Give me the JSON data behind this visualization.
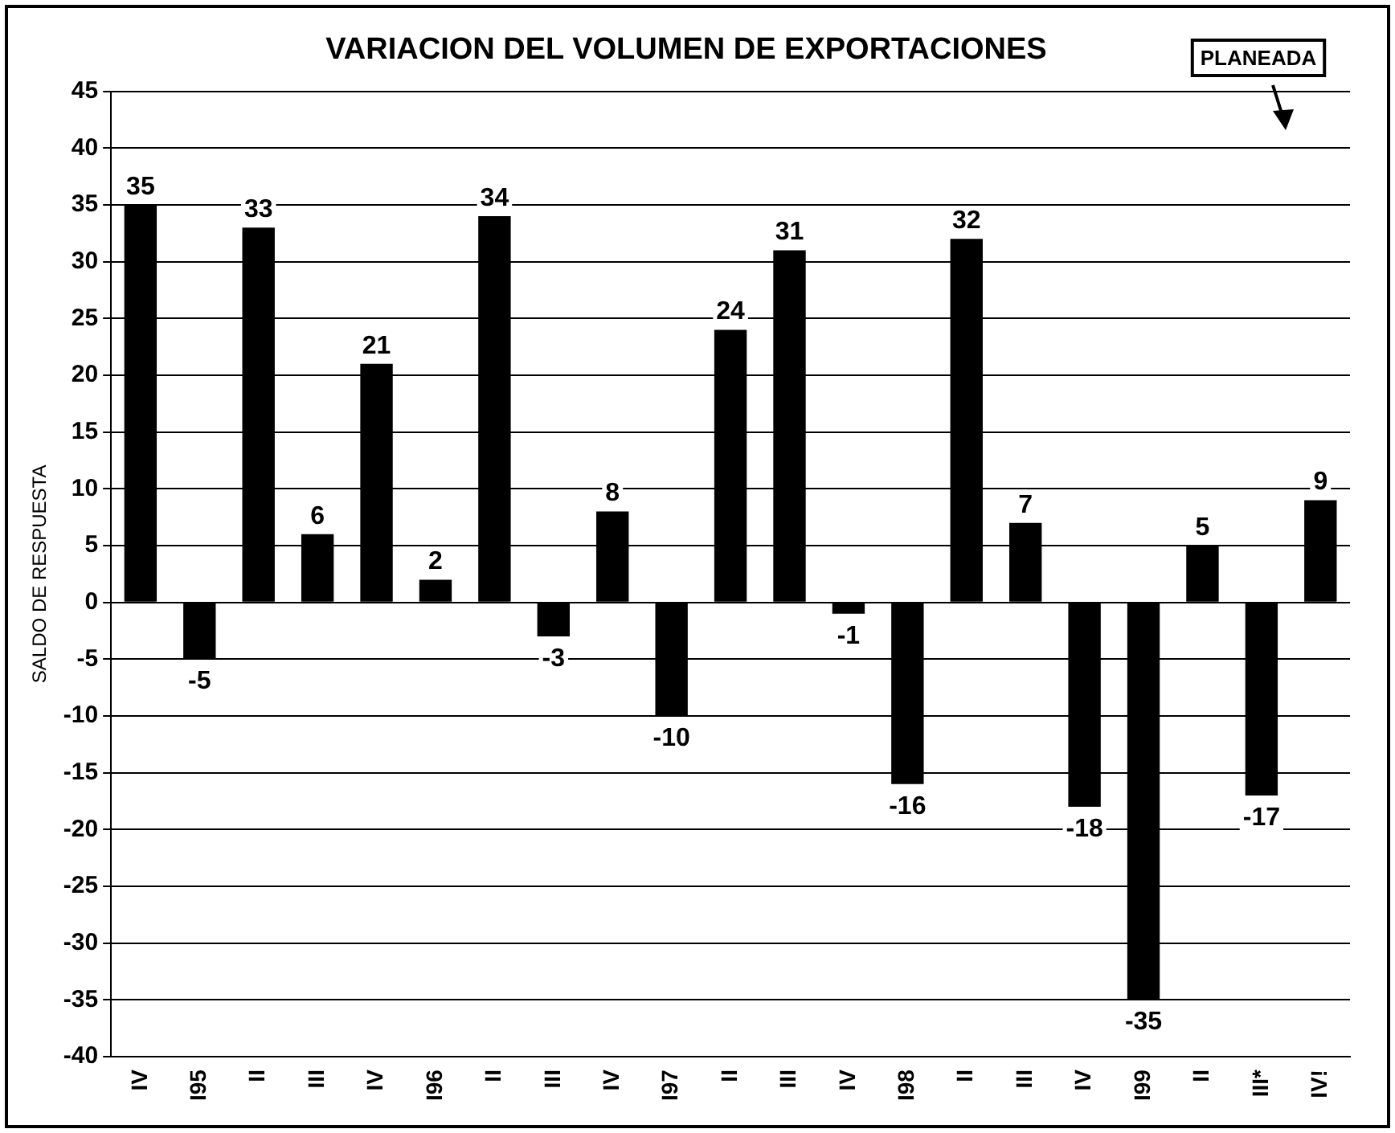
{
  "chart_data": {
    "type": "bar",
    "title": "VARIACION DEL VOLUMEN DE EXPORTACIONES",
    "ylabel": "SALDO DE RESPUESTA",
    "categories": [
      "IV",
      "I95",
      "II",
      "III",
      "IV",
      "I96",
      "II",
      "III",
      "IV",
      "I97",
      "II",
      "III",
      "IV",
      "I98",
      "II",
      "III",
      "IV",
      "I99",
      "II",
      "III*",
      "IV!"
    ],
    "values": [
      35,
      -5,
      33,
      6,
      21,
      2,
      34,
      -3,
      8,
      -10,
      24,
      31,
      -1,
      -16,
      32,
      7,
      -18,
      -35,
      5,
      -17,
      9
    ],
    "color": "#000000",
    "ylim": [
      -40,
      45
    ],
    "yticks": [
      -40,
      -35,
      -30,
      -25,
      -20,
      -15,
      -10,
      -5,
      0,
      5,
      10,
      15,
      20,
      25,
      30,
      35,
      40,
      45
    ],
    "grid": "y",
    "data_labels": true,
    "legend": false,
    "annotations": [
      "PLANEADA"
    ]
  }
}
